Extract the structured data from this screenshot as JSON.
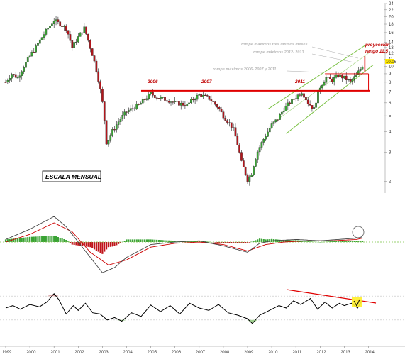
{
  "chart_data": [
    {
      "type": "candlestick",
      "scale": "log",
      "ylim": [
        1.7,
        24
      ],
      "y_ticks": [
        "2",
        "3",
        "4",
        "5",
        "6",
        "7",
        "8",
        "9",
        "10",
        "11",
        "12",
        "13",
        "14",
        "16",
        "18",
        "20",
        "22",
        "24"
      ],
      "x_ticks": [
        "1999",
        "2000",
        "2001",
        "2002",
        "2003",
        "2004",
        "2005",
        "2006",
        "2007",
        "2008",
        "2009",
        "2010",
        "2011",
        "2012",
        "2013",
        "2014"
      ],
      "last_price_label": "10.06",
      "scale_label": "ESCALA MENSUAL",
      "annotations": {
        "year_2006": "2006",
        "year_2007": "2007",
        "year_2011": "2011",
        "breaks_last_3": "rompe máximos tres últimos meses",
        "breaks_2012_2013": "rompe máximos 2012- 2013",
        "breaks_2006_2007_2011": "rompe máximos 2006- 2007 y 2011",
        "projection_line1": "proyección",
        "projection_line2": "rango 11,5"
      },
      "horizontal_level": 7.1,
      "close_series": [
        [
          1999.0,
          8.0
        ],
        [
          1999.25,
          9.0
        ],
        [
          1999.5,
          8.5
        ],
        [
          1999.75,
          10.0
        ],
        [
          2000.0,
          11.5
        ],
        [
          2000.25,
          13.0
        ],
        [
          2000.5,
          15.0
        ],
        [
          2000.75,
          17.0
        ],
        [
          2001.0,
          19.0
        ],
        [
          2001.25,
          18.0
        ],
        [
          2001.5,
          17.0
        ],
        [
          2001.75,
          13.0
        ],
        [
          2002.0,
          15.0
        ],
        [
          2002.25,
          17.0
        ],
        [
          2002.5,
          13.0
        ],
        [
          2002.75,
          9.5
        ],
        [
          2003.0,
          6.0
        ],
        [
          2003.17,
          3.4
        ],
        [
          2003.4,
          4.0
        ],
        [
          2003.75,
          4.8
        ],
        [
          2004.0,
          5.3
        ],
        [
          2004.5,
          5.8
        ],
        [
          2004.75,
          6.3
        ],
        [
          2005.0,
          6.8
        ],
        [
          2005.25,
          6.5
        ],
        [
          2005.75,
          6.2
        ],
        [
          2006.0,
          6.0
        ],
        [
          2006.5,
          5.8
        ],
        [
          2006.75,
          6.3
        ],
        [
          2007.0,
          6.7
        ],
        [
          2007.4,
          6.4
        ],
        [
          2007.75,
          5.7
        ],
        [
          2008.0,
          5.0
        ],
        [
          2008.4,
          4.2
        ],
        [
          2008.75,
          2.6
        ],
        [
          2009.0,
          2.05
        ],
        [
          2009.15,
          2.2
        ],
        [
          2009.4,
          3.0
        ],
        [
          2009.75,
          3.8
        ],
        [
          2010.0,
          4.4
        ],
        [
          2010.25,
          4.8
        ],
        [
          2010.5,
          5.5
        ],
        [
          2010.75,
          6.0
        ],
        [
          2011.0,
          6.5
        ],
        [
          2011.25,
          7.0
        ],
        [
          2011.5,
          6.0
        ],
        [
          2011.75,
          5.5
        ],
        [
          2012.0,
          7.5
        ],
        [
          2012.25,
          8.5
        ],
        [
          2012.5,
          8.2
        ],
        [
          2012.75,
          8.8
        ],
        [
          2013.0,
          8.5
        ],
        [
          2013.25,
          8.0
        ],
        [
          2013.5,
          8.8
        ],
        [
          2013.75,
          10.06
        ]
      ]
    },
    {
      "type": "macd",
      "zero_line": 0,
      "fast_series": [
        [
          1999.0,
          0.1
        ],
        [
          2000.0,
          0.5
        ],
        [
          2001.0,
          1.0
        ],
        [
          2001.5,
          0.6
        ],
        [
          2002.5,
          -0.6
        ],
        [
          2003.0,
          -1.2
        ],
        [
          2003.5,
          -1.0
        ],
        [
          2004.0,
          -0.6
        ],
        [
          2005.0,
          -0.1
        ],
        [
          2006.0,
          0.0
        ],
        [
          2007.0,
          0.05
        ],
        [
          2008.0,
          -0.15
        ],
        [
          2009.0,
          -0.4
        ],
        [
          2009.5,
          -0.05
        ],
        [
          2010.0,
          0.05
        ],
        [
          2011.0,
          0.1
        ],
        [
          2012.0,
          0.05
        ],
        [
          2012.75,
          0.1
        ],
        [
          2013.5,
          0.15
        ],
        [
          2013.75,
          0.2
        ]
      ],
      "signal_series": [
        [
          1999.0,
          0.0
        ],
        [
          2000.0,
          0.3
        ],
        [
          2001.0,
          0.75
        ],
        [
          2001.75,
          0.4
        ],
        [
          2002.5,
          -0.4
        ],
        [
          2003.25,
          -0.9
        ],
        [
          2004.0,
          -0.7
        ],
        [
          2005.0,
          -0.2
        ],
        [
          2006.0,
          -0.05
        ],
        [
          2007.0,
          0.0
        ],
        [
          2008.0,
          -0.1
        ],
        [
          2009.0,
          -0.35
        ],
        [
          2009.75,
          -0.1
        ],
        [
          2010.5,
          0.0
        ],
        [
          2011.5,
          0.05
        ],
        [
          2012.5,
          0.05
        ],
        [
          2013.5,
          0.1
        ],
        [
          2013.75,
          0.15
        ]
      ]
    },
    {
      "type": "line",
      "indicator": "oscillator",
      "ylim": [
        0,
        100
      ],
      "upper_band": 70,
      "lower_band": 30,
      "series": [
        [
          1999.0,
          50
        ],
        [
          1999.3,
          54
        ],
        [
          1999.6,
          48
        ],
        [
          2000.0,
          56
        ],
        [
          2000.4,
          52
        ],
        [
          2000.7,
          60
        ],
        [
          2001.0,
          74
        ],
        [
          2001.2,
          64
        ],
        [
          2001.5,
          40
        ],
        [
          2001.8,
          54
        ],
        [
          2002.0,
          46
        ],
        [
          2002.3,
          58
        ],
        [
          2002.6,
          42
        ],
        [
          2002.9,
          40
        ],
        [
          2003.2,
          30
        ],
        [
          2003.5,
          34
        ],
        [
          2003.8,
          28
        ],
        [
          2004.2,
          42
        ],
        [
          2004.6,
          36
        ],
        [
          2005.0,
          55
        ],
        [
          2005.4,
          44
        ],
        [
          2005.8,
          54
        ],
        [
          2006.2,
          40
        ],
        [
          2006.6,
          58
        ],
        [
          2007.0,
          50
        ],
        [
          2007.4,
          46
        ],
        [
          2007.8,
          56
        ],
        [
          2008.2,
          42
        ],
        [
          2008.6,
          38
        ],
        [
          2009.0,
          32
        ],
        [
          2009.2,
          24
        ],
        [
          2009.5,
          38
        ],
        [
          2009.9,
          46
        ],
        [
          2010.3,
          54
        ],
        [
          2010.6,
          50
        ],
        [
          2010.9,
          62
        ],
        [
          2011.2,
          56
        ],
        [
          2011.6,
          66
        ],
        [
          2011.9,
          48
        ],
        [
          2012.2,
          60
        ],
        [
          2012.5,
          50
        ],
        [
          2012.8,
          58
        ],
        [
          2013.0,
          54
        ],
        [
          2013.3,
          58
        ],
        [
          2013.55,
          50
        ],
        [
          2013.75,
          64
        ]
      ]
    }
  ]
}
